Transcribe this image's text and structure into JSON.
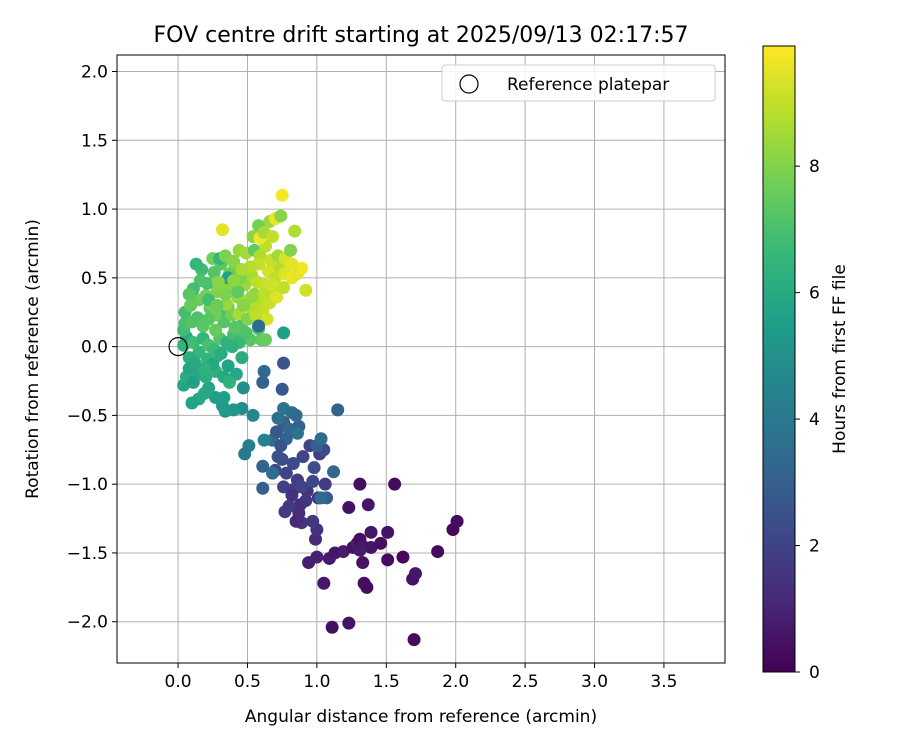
{
  "chart_data": {
    "type": "scatter",
    "title": "FOV centre drift starting at 2025/09/13 02:17:57",
    "xlabel": "Angular distance from reference (arcmin)",
    "ylabel": "Rotation from reference (arcmin)",
    "xlim": [
      -0.44,
      3.94
    ],
    "ylim": [
      -2.3,
      2.12
    ],
    "xticks": [
      0.0,
      0.5,
      1.0,
      1.5,
      2.0,
      2.5,
      3.0,
      3.5
    ],
    "xtick_labels": [
      "0.0",
      "0.5",
      "1.0",
      "1.5",
      "2.0",
      "2.5",
      "3.0",
      "3.5"
    ],
    "yticks": [
      -2.0,
      -1.5,
      -1.0,
      -0.5,
      0.0,
      0.5,
      1.0,
      1.5,
      2.0
    ],
    "ytick_labels": [
      "−2.0",
      "−1.5",
      "−1.0",
      "−0.5",
      "0.0",
      "0.5",
      "1.0",
      "1.5",
      "2.0"
    ],
    "grid": true,
    "legend": {
      "placement": "top-right",
      "entries": [
        "Reference platepar"
      ]
    },
    "reference_point": {
      "name": "Reference platepar",
      "x": 0.0,
      "y": 0.0
    },
    "colorbar": {
      "label": "Hours from first FF file",
      "range": [
        0,
        9.9
      ],
      "ticks": [
        0,
        2,
        4,
        6,
        8
      ],
      "tick_labels": [
        "0",
        "2",
        "4",
        "6",
        "8"
      ],
      "colormap": [
        "#440154",
        "#482878",
        "#3e4989",
        "#31688e",
        "#26828e",
        "#1f9e89",
        "#35b779",
        "#6ece58",
        "#b5de2b",
        "#fde725"
      ]
    },
    "points": [
      [
        1.7,
        -2.13,
        0.3
      ],
      [
        1.11,
        -2.04,
        0.4
      ],
      [
        1.23,
        -2.01,
        0.5
      ],
      [
        1.05,
        -1.72,
        0.6
      ],
      [
        1.34,
        -1.72,
        0.4
      ],
      [
        1.36,
        -1.75,
        0.3
      ],
      [
        1.69,
        -1.69,
        0.5
      ],
      [
        1.71,
        -1.65,
        0.6
      ],
      [
        0.94,
        -1.57,
        0.8
      ],
      [
        1.0,
        -1.53,
        0.9
      ],
      [
        1.09,
        -1.54,
        0.7
      ],
      [
        1.13,
        -1.5,
        0.6
      ],
      [
        1.19,
        -1.49,
        0.7
      ],
      [
        1.26,
        -1.46,
        0.5
      ],
      [
        1.29,
        -1.43,
        0.8
      ],
      [
        1.31,
        -1.4,
        0.4
      ],
      [
        1.33,
        -1.45,
        0.6
      ],
      [
        1.39,
        -1.46,
        0.5
      ],
      [
        1.46,
        -1.43,
        0.4
      ],
      [
        1.51,
        -1.55,
        0.3
      ],
      [
        1.51,
        -1.35,
        0.5
      ],
      [
        1.39,
        -1.35,
        0.6
      ],
      [
        1.62,
        -1.53,
        0.2
      ],
      [
        1.87,
        -1.49,
        0.3
      ],
      [
        1.98,
        -1.33,
        0.2
      ],
      [
        2.01,
        -1.27,
        0.3
      ],
      [
        1.23,
        -1.17,
        0.5
      ],
      [
        1.37,
        -1.15,
        0.6
      ],
      [
        1.31,
        -1.0,
        0.4
      ],
      [
        1.56,
        -1.0,
        0.3
      ],
      [
        1.33,
        -1.57,
        0.5
      ],
      [
        1.31,
        -1.48,
        0.7
      ],
      [
        0.99,
        -1.4,
        1.2
      ],
      [
        1.0,
        -1.33,
        1.4
      ],
      [
        0.97,
        -1.27,
        1.6
      ],
      [
        0.89,
        -1.28,
        1.5
      ],
      [
        0.88,
        -1.15,
        1.3
      ],
      [
        0.8,
        -1.16,
        1.7
      ],
      [
        0.93,
        -1.05,
        1.6
      ],
      [
        1.01,
        -1.1,
        1.5
      ],
      [
        0.83,
        -1.04,
        1.8
      ],
      [
        0.76,
        -1.02,
        1.9
      ],
      [
        0.78,
        -0.92,
        2.0
      ],
      [
        0.86,
        -0.97,
        1.8
      ],
      [
        0.97,
        -0.98,
        2.1
      ],
      [
        0.83,
        -0.85,
        2.2
      ],
      [
        0.9,
        -0.8,
        2.1
      ],
      [
        0.75,
        -0.82,
        2.3
      ],
      [
        0.7,
        -0.9,
        2.2
      ],
      [
        0.72,
        -0.8,
        2.5
      ],
      [
        0.95,
        -0.72,
        2.0
      ],
      [
        1.02,
        -0.78,
        1.9
      ],
      [
        1.05,
        -0.75,
        2.2
      ],
      [
        0.82,
        -1.08,
        1.4
      ],
      [
        0.87,
        -1.21,
        1.3
      ],
      [
        0.92,
        -1.12,
        1.6
      ],
      [
        0.77,
        -1.2,
        1.7
      ],
      [
        0.85,
        -1.27,
        1.2
      ],
      [
        1.06,
        -1.0,
        1.8
      ],
      [
        0.98,
        -0.88,
        2.4
      ],
      [
        0.89,
        -1.02,
        2.0
      ],
      [
        1.07,
        -1.1,
        2.9
      ],
      [
        1.03,
        -1.1,
        3.4
      ],
      [
        1.12,
        -0.91,
        3.3
      ],
      [
        0.61,
        -1.03,
        3.0
      ],
      [
        0.61,
        -0.87,
        3.2
      ],
      [
        0.68,
        -0.92,
        3.6
      ],
      [
        0.68,
        -0.68,
        3.5
      ],
      [
        0.71,
        -0.62,
        2.8
      ],
      [
        0.76,
        -0.55,
        3.0
      ],
      [
        0.8,
        -0.6,
        3.3
      ],
      [
        0.87,
        -0.58,
        3.1
      ],
      [
        0.72,
        -0.52,
        3.7
      ],
      [
        0.76,
        -0.45,
        3.9
      ],
      [
        0.82,
        -0.48,
        3.6
      ],
      [
        0.85,
        -0.5,
        3.4
      ],
      [
        0.86,
        -0.63,
        3.8
      ],
      [
        0.78,
        -0.67,
        3.2
      ],
      [
        0.74,
        -0.72,
        2.6
      ],
      [
        0.71,
        -0.62,
        2.7
      ],
      [
        1.0,
        -0.72,
        3.0
      ],
      [
        1.03,
        -0.67,
        3.5
      ],
      [
        1.15,
        -0.46,
        3.1
      ],
      [
        0.75,
        -0.31,
        2.8
      ],
      [
        0.61,
        -0.26,
        3.1
      ],
      [
        0.62,
        -0.18,
        3.4
      ],
      [
        0.76,
        -0.12,
        2.6
      ],
      [
        0.51,
        -0.72,
        4.2
      ],
      [
        0.48,
        -0.78,
        4.0
      ],
      [
        0.62,
        -0.68,
        4.4
      ],
      [
        0.54,
        -0.5,
        4.6
      ],
      [
        0.46,
        -0.45,
        4.8
      ],
      [
        0.47,
        -0.3,
        5.0
      ],
      [
        0.4,
        -0.46,
        5.1
      ],
      [
        0.34,
        -0.47,
        5.3
      ],
      [
        0.32,
        -0.43,
        5.4
      ],
      [
        0.33,
        -0.37,
        5.6
      ],
      [
        0.27,
        -0.37,
        5.5
      ],
      [
        0.22,
        -0.3,
        5.8
      ],
      [
        0.19,
        -0.34,
        5.9
      ],
      [
        0.15,
        -0.38,
        6.0
      ],
      [
        0.1,
        -0.41,
        5.7
      ],
      [
        0.04,
        -0.28,
        5.8
      ],
      [
        0.06,
        -0.22,
        6.1
      ],
      [
        0.11,
        -0.26,
        5.6
      ],
      [
        0.15,
        -0.2,
        5.9
      ],
      [
        0.2,
        -0.22,
        6.2
      ],
      [
        0.27,
        -0.18,
        6.3
      ],
      [
        0.33,
        -0.22,
        6.0
      ],
      [
        0.36,
        -0.14,
        5.7
      ],
      [
        0.42,
        -0.2,
        5.9
      ],
      [
        0.46,
        -0.08,
        6.1
      ],
      [
        0.37,
        -0.26,
        6.4
      ],
      [
        0.28,
        -0.07,
        6.3
      ],
      [
        0.21,
        -0.09,
        6.5
      ],
      [
        0.15,
        -0.04,
        6.6
      ],
      [
        0.08,
        -0.08,
        6.2
      ],
      [
        0.04,
        0.01,
        6.4
      ],
      [
        0.06,
        0.07,
        6.0
      ],
      [
        0.11,
        0.03,
        6.8
      ],
      [
        0.18,
        0.06,
        6.5
      ],
      [
        0.22,
        0.01,
        7.0
      ],
      [
        0.26,
        -0.02,
        6.7
      ],
      [
        0.3,
        0.06,
        7.2
      ],
      [
        0.35,
        0.03,
        6.4
      ],
      [
        0.4,
        0.09,
        6.9
      ],
      [
        0.45,
        0.15,
        7.1
      ],
      [
        0.52,
        0.05,
        7.3
      ],
      [
        0.58,
        0.13,
        7.0
      ],
      [
        0.6,
        0.05,
        7.4
      ],
      [
        0.63,
        0.05,
        7.6
      ],
      [
        0.04,
        0.12,
        6.8
      ],
      [
        0.05,
        0.17,
        7.0
      ],
      [
        0.05,
        0.25,
        6.9
      ],
      [
        0.1,
        0.18,
        7.2
      ],
      [
        0.14,
        0.21,
        7.1
      ],
      [
        0.18,
        0.15,
        7.3
      ],
      [
        0.23,
        0.28,
        7.4
      ],
      [
        0.27,
        0.12,
        7.5
      ],
      [
        0.3,
        0.25,
        7.0
      ],
      [
        0.33,
        0.18,
        7.2
      ],
      [
        0.36,
        0.29,
        7.6
      ],
      [
        0.39,
        0.23,
        7.8
      ],
      [
        0.41,
        0.14,
        7.3
      ],
      [
        0.15,
        0.34,
        7.6
      ],
      [
        0.2,
        0.37,
        7.8
      ],
      [
        0.24,
        0.31,
        7.9
      ],
      [
        0.28,
        0.4,
        8.0
      ],
      [
        0.33,
        0.45,
        8.2
      ],
      [
        0.38,
        0.4,
        8.1
      ],
      [
        0.43,
        0.36,
        8.3
      ],
      [
        0.48,
        0.33,
        8.5
      ],
      [
        0.53,
        0.28,
        8.7
      ],
      [
        0.58,
        0.32,
        8.8
      ],
      [
        0.61,
        0.26,
        9.0
      ],
      [
        0.64,
        0.2,
        9.2
      ],
      [
        0.48,
        0.45,
        8.4
      ],
      [
        0.53,
        0.52,
        8.6
      ],
      [
        0.57,
        0.47,
        8.9
      ],
      [
        0.62,
        0.45,
        9.1
      ],
      [
        0.65,
        0.55,
        9.3
      ],
      [
        0.7,
        0.5,
        9.0
      ],
      [
        0.73,
        0.58,
        8.8
      ],
      [
        0.77,
        0.53,
        9.4
      ],
      [
        0.82,
        0.5,
        9.6
      ],
      [
        0.86,
        0.53,
        9.5
      ],
      [
        0.89,
        0.57,
        9.7
      ],
      [
        0.92,
        0.41,
        9.2
      ],
      [
        0.7,
        0.4,
        8.9
      ],
      [
        0.66,
        0.32,
        9.1
      ],
      [
        0.55,
        0.38,
        8.2
      ],
      [
        0.45,
        0.5,
        8.0
      ],
      [
        0.41,
        0.58,
        7.8
      ],
      [
        0.37,
        0.53,
        7.6
      ],
      [
        0.31,
        0.6,
        7.4
      ],
      [
        0.26,
        0.54,
        7.2
      ],
      [
        0.21,
        0.46,
        7.0
      ],
      [
        0.17,
        0.56,
        6.8
      ],
      [
        0.13,
        0.6,
        6.6
      ],
      [
        0.16,
        0.48,
        7.1
      ],
      [
        0.11,
        0.42,
        6.9
      ],
      [
        0.08,
        0.38,
        7.3
      ],
      [
        0.09,
        0.3,
        7.5
      ],
      [
        0.25,
        0.64,
        7.7
      ],
      [
        0.3,
        0.64,
        6.5
      ],
      [
        0.34,
        0.66,
        7.9
      ],
      [
        0.4,
        0.62,
        8.1
      ],
      [
        0.44,
        0.7,
        8.3
      ],
      [
        0.49,
        0.68,
        8.5
      ],
      [
        0.55,
        0.7,
        7.4
      ],
      [
        0.59,
        0.66,
        8.7
      ],
      [
        0.63,
        0.73,
        8.9
      ],
      [
        0.67,
        0.63,
        9.1
      ],
      [
        0.72,
        0.66,
        8.5
      ],
      [
        0.77,
        0.64,
        9.3
      ],
      [
        0.81,
        0.7,
        8.0
      ],
      [
        0.82,
        0.6,
        9.5
      ],
      [
        0.84,
        0.84,
        8.7
      ],
      [
        0.66,
        0.91,
        8.4
      ],
      [
        0.7,
        0.93,
        9.6
      ],
      [
        0.74,
        0.95,
        8.1
      ],
      [
        0.58,
        0.88,
        7.8
      ],
      [
        0.54,
        0.8,
        8.2
      ],
      [
        0.59,
        0.79,
        9.7
      ],
      [
        0.62,
        0.83,
        8.6
      ],
      [
        0.68,
        0.8,
        9.0
      ],
      [
        0.75,
        1.1,
        9.8
      ],
      [
        0.32,
        0.85,
        9.5
      ],
      [
        0.36,
        0.5,
        5.6
      ],
      [
        0.22,
        0.34,
        6.9
      ],
      [
        0.27,
        0.23,
        7.7
      ],
      [
        0.35,
        0.31,
        8.4
      ],
      [
        0.44,
        0.24,
        8.6
      ],
      [
        0.5,
        0.2,
        8.0
      ],
      [
        0.56,
        0.23,
        8.9
      ],
      [
        0.43,
        0.4,
        7.4
      ],
      [
        0.49,
        0.1,
        7.1
      ],
      [
        0.44,
        0.03,
        6.7
      ],
      [
        0.39,
        0.0,
        6.3
      ],
      [
        0.31,
        -0.05,
        6.1
      ],
      [
        0.25,
        -0.13,
        5.9
      ],
      [
        0.19,
        -0.16,
        6.4
      ],
      [
        0.12,
        -0.12,
        6.0
      ],
      [
        0.08,
        -0.16,
        5.8
      ],
      [
        0.53,
        0.36,
        8.3
      ],
      [
        0.47,
        0.3,
        8.1
      ],
      [
        0.58,
        0.15,
        3.5
      ],
      [
        0.76,
        0.1,
        5.5
      ],
      [
        0.58,
        0.6,
        9.0
      ],
      [
        0.52,
        0.58,
        8.8
      ],
      [
        0.46,
        0.56,
        8.6
      ],
      [
        0.4,
        0.48,
        8.2
      ],
      [
        0.34,
        0.38,
        7.9
      ],
      [
        0.28,
        0.3,
        7.6
      ],
      [
        0.22,
        0.2,
        7.3
      ],
      [
        0.29,
        0.47,
        8.1
      ],
      [
        0.62,
        0.38,
        8.9
      ],
      [
        0.67,
        0.45,
        9.2
      ],
      [
        0.71,
        0.36,
        9.4
      ],
      [
        0.76,
        0.43,
        9.0
      ]
    ]
  }
}
